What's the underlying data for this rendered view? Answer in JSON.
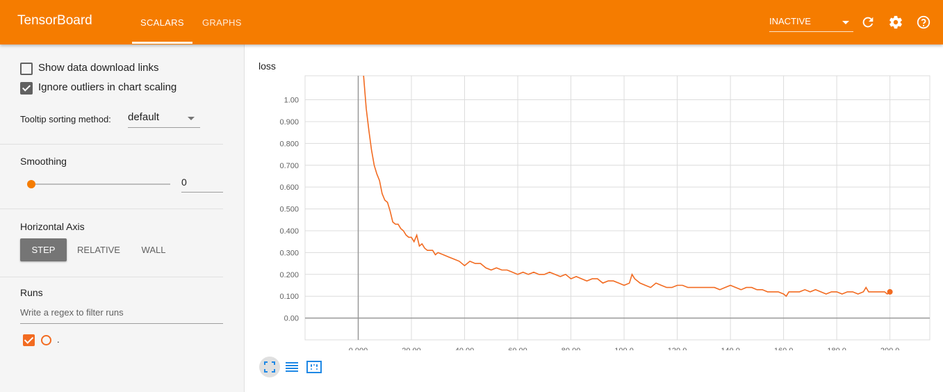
{
  "header": {
    "brand": "TensorBoard",
    "tabs": [
      {
        "label": "SCALARS",
        "active": true
      },
      {
        "label": "GRAPHS",
        "active": false
      }
    ],
    "status_select": {
      "value": "INACTIVE"
    },
    "icons": [
      "refresh-icon",
      "settings-gear-icon",
      "help-circle-icon"
    ],
    "accent_color": "#f57c00"
  },
  "sidebar": {
    "options": [
      {
        "label": "Show data download links",
        "checked": false
      },
      {
        "label": "Ignore outliers in chart scaling",
        "checked": true
      }
    ],
    "tooltip_sorting": {
      "label": "Tooltip sorting method:",
      "value": "default"
    },
    "smoothing": {
      "title": "Smoothing",
      "slider_value": 0,
      "value": "0"
    },
    "horizontal_axis": {
      "title": "Horizontal Axis",
      "options": [
        "STEP",
        "RELATIVE",
        "WALL"
      ],
      "selected": "STEP"
    },
    "runs": {
      "title": "Runs",
      "filter_placeholder": "Write a regex to filter runs",
      "items": [
        {
          "name": ".",
          "checked": true,
          "color": "#f26b21"
        }
      ]
    }
  },
  "card": {
    "title": "loss",
    "buttons": [
      "fit-domain-icon",
      "list-icon",
      "zoom-selection-icon"
    ]
  },
  "chart_data": {
    "type": "line",
    "title": "loss",
    "xlabel": "",
    "ylabel": "",
    "xlim": [
      -20,
      215
    ],
    "ylim": [
      -0.1,
      1.11
    ],
    "x_ticks": [
      "0.000",
      "20.00",
      "40.00",
      "60.00",
      "80.00",
      "100.0",
      "120.0",
      "140.0",
      "160.0",
      "180.0",
      "200.0"
    ],
    "x_tick_values": [
      0,
      20,
      40,
      60,
      80,
      100,
      120,
      140,
      160,
      180,
      200
    ],
    "y_ticks": [
      "0.00",
      "0.100",
      "0.200",
      "0.300",
      "0.400",
      "0.500",
      "0.600",
      "0.700",
      "0.800",
      "0.900",
      "1.00"
    ],
    "y_tick_values": [
      0,
      0.1,
      0.2,
      0.3,
      0.4,
      0.5,
      0.6,
      0.7,
      0.8,
      0.9,
      1.0
    ],
    "grid": true,
    "series": [
      {
        "color": "#f26b21",
        "x": [
          2,
          3,
          4,
          5,
          6,
          7,
          8,
          9,
          10,
          11,
          12,
          13,
          14,
          15,
          16,
          17,
          18,
          19,
          20,
          21,
          22,
          23,
          24,
          25,
          26,
          27,
          28,
          29,
          30,
          32,
          34,
          36,
          38,
          40,
          42,
          44,
          46,
          48,
          50,
          52,
          54,
          56,
          58,
          60,
          62,
          64,
          66,
          68,
          70,
          72,
          74,
          76,
          78,
          80,
          82,
          84,
          86,
          88,
          90,
          92,
          94,
          96,
          98,
          100,
          102,
          103,
          104,
          106,
          108,
          110,
          112,
          114,
          116,
          118,
          120,
          122,
          124,
          126,
          128,
          130,
          132,
          134,
          136,
          138,
          140,
          142,
          144,
          146,
          148,
          150,
          152,
          154,
          156,
          158,
          160,
          161,
          162,
          164,
          166,
          168,
          170,
          172,
          174,
          176,
          178,
          180,
          182,
          184,
          186,
          188,
          190,
          191,
          192,
          194,
          196,
          198,
          199,
          200
        ],
        "y": [
          1.11,
          0.96,
          0.86,
          0.77,
          0.7,
          0.66,
          0.63,
          0.57,
          0.54,
          0.53,
          0.49,
          0.44,
          0.43,
          0.43,
          0.41,
          0.4,
          0.38,
          0.37,
          0.37,
          0.35,
          0.38,
          0.33,
          0.34,
          0.32,
          0.31,
          0.31,
          0.31,
          0.29,
          0.3,
          0.29,
          0.28,
          0.27,
          0.26,
          0.24,
          0.26,
          0.25,
          0.25,
          0.23,
          0.22,
          0.23,
          0.22,
          0.22,
          0.21,
          0.2,
          0.21,
          0.2,
          0.21,
          0.2,
          0.2,
          0.21,
          0.2,
          0.19,
          0.2,
          0.18,
          0.19,
          0.18,
          0.17,
          0.18,
          0.18,
          0.16,
          0.17,
          0.17,
          0.16,
          0.15,
          0.16,
          0.2,
          0.18,
          0.16,
          0.15,
          0.14,
          0.16,
          0.15,
          0.14,
          0.14,
          0.15,
          0.15,
          0.14,
          0.14,
          0.14,
          0.14,
          0.14,
          0.14,
          0.13,
          0.14,
          0.15,
          0.14,
          0.13,
          0.14,
          0.14,
          0.13,
          0.13,
          0.12,
          0.12,
          0.12,
          0.11,
          0.1,
          0.12,
          0.12,
          0.12,
          0.13,
          0.12,
          0.13,
          0.12,
          0.11,
          0.12,
          0.12,
          0.11,
          0.12,
          0.12,
          0.11,
          0.12,
          0.14,
          0.12,
          0.12,
          0.12,
          0.12,
          0.11,
          0.12
        ]
      }
    ]
  }
}
